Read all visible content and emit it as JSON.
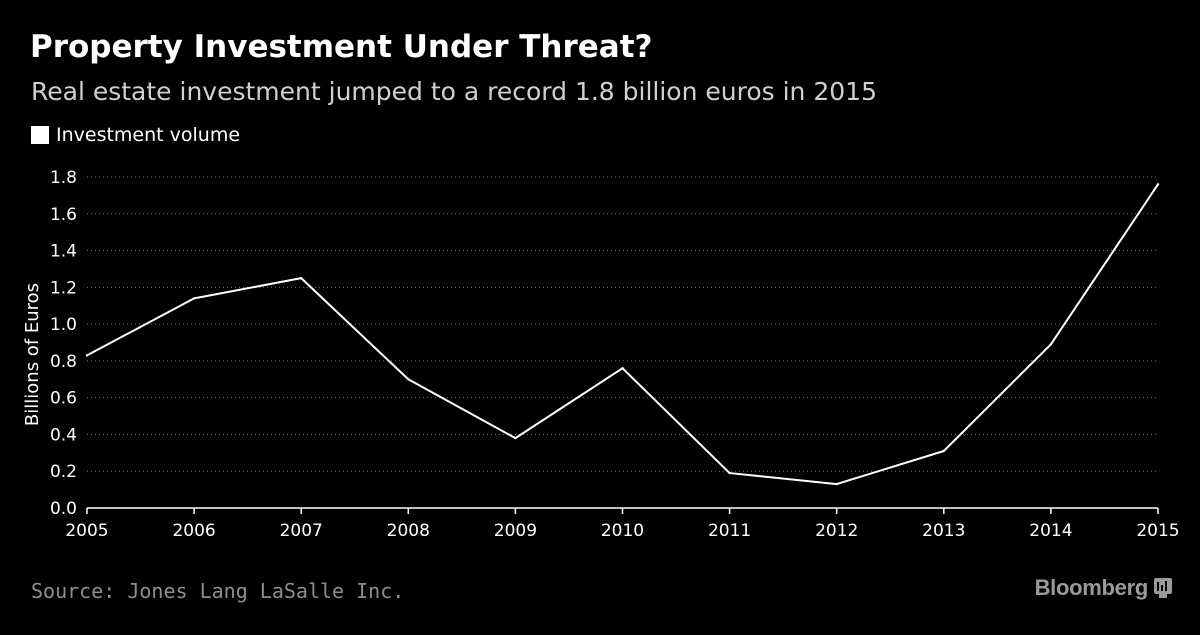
{
  "header": {
    "title": "Property Investment Under Threat?",
    "subtitle": "Real estate investment jumped to a record 1.8 billion euros in 2015"
  },
  "footer": {
    "source": "Source: Jones Lang LaSalle Inc.",
    "brand": "Bloomberg",
    "brand_icon": "bloomberg-terminal-icon"
  },
  "colors": {
    "background": "#000000",
    "line": "#ffffff",
    "grid": "#6e6e6e",
    "subtitle": "#d0d0d0",
    "source": "#8e8e8e",
    "brand": "#9a9a9a"
  },
  "chart_data": {
    "type": "line",
    "title": "Property Investment Under Threat?",
    "subtitle": "Real estate investment jumped to a record 1.8 billion euros in 2015",
    "xlabel": "",
    "ylabel": "Billions of Euros",
    "x": [
      "2005",
      "2006",
      "2007",
      "2008",
      "2009",
      "2010",
      "2011",
      "2012",
      "2013",
      "2014",
      "2015"
    ],
    "series": [
      {
        "name": "Investment volume",
        "values": [
          0.83,
          1.14,
          1.25,
          0.7,
          0.38,
          0.76,
          0.19,
          0.13,
          0.31,
          0.89,
          1.76
        ]
      }
    ],
    "ylim": [
      0,
      1.8
    ],
    "yticks": [
      "0.0",
      "0.2",
      "0.4",
      "0.6",
      "0.8",
      "1.0",
      "1.2",
      "1.4",
      "1.6",
      "1.8"
    ],
    "grid": true,
    "grid_style": "dotted horizontal",
    "legend_position": "top-left"
  }
}
